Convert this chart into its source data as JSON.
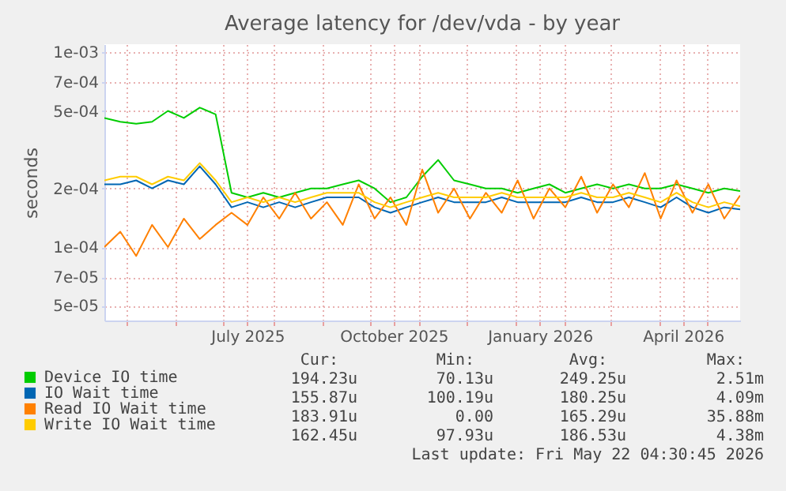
{
  "chart_data": {
    "type": "line",
    "title": "Average latency for /dev/vda - by year",
    "ylabel": "seconds",
    "log": "y",
    "grid": true,
    "legend": "bottom",
    "xlim": [
      "2025-04-17",
      "2026-05-22"
    ],
    "xticks": [
      {
        "value": "2025-05-01",
        "label": null
      },
      {
        "value": "2025-06-01",
        "label": null
      },
      {
        "value": "2025-07-01",
        "label": null
      },
      {
        "value": "2025-07-16",
        "label": "July 2025"
      },
      {
        "value": "2025-08-01",
        "label": null
      },
      {
        "value": "2025-09-01",
        "label": null
      },
      {
        "value": "2025-10-01",
        "label": null
      },
      {
        "value": "2025-10-16",
        "label": "October 2025"
      },
      {
        "value": "2025-11-01",
        "label": null
      },
      {
        "value": "2025-12-01",
        "label": null
      },
      {
        "value": "2026-01-01",
        "label": null
      },
      {
        "value": "2026-01-16",
        "label": "January 2026"
      },
      {
        "value": "2026-02-01",
        "label": null
      },
      {
        "value": "2026-03-01",
        "label": null
      },
      {
        "value": "2026-04-01",
        "label": null
      },
      {
        "value": "2026-04-16",
        "label": "April 2026"
      },
      {
        "value": "2026-05-01",
        "label": null
      }
    ],
    "ylim": [
      4.2e-05,
      0.0011
    ],
    "yticks": [
      {
        "value": 5e-05,
        "label": "5e-05"
      },
      {
        "value": 7e-05,
        "label": "7e-05"
      },
      {
        "value": 0.0001,
        "label": "1e-04"
      },
      {
        "value": 0.0002,
        "label": "2e-04"
      },
      {
        "value": 0.0005,
        "label": "5e-04"
      },
      {
        "value": 0.0007,
        "label": "7e-04"
      },
      {
        "value": 0.001,
        "label": "1e-03"
      }
    ],
    "x": [
      "2025-04-17",
      "2025-04-27",
      "2025-05-07",
      "2025-05-17",
      "2025-05-27",
      "2025-06-06",
      "2025-06-16",
      "2025-06-26",
      "2025-07-06",
      "2025-07-16",
      "2025-07-26",
      "2025-08-05",
      "2025-08-15",
      "2025-08-25",
      "2025-09-04",
      "2025-09-14",
      "2025-09-24",
      "2025-10-04",
      "2025-10-14",
      "2025-10-24",
      "2025-11-03",
      "2025-11-13",
      "2025-11-23",
      "2025-12-03",
      "2025-12-13",
      "2025-12-23",
      "2026-01-02",
      "2026-01-12",
      "2026-01-22",
      "2026-02-01",
      "2026-02-11",
      "2026-02-21",
      "2026-03-03",
      "2026-03-13",
      "2026-03-23",
      "2026-04-02",
      "2026-04-12",
      "2026-04-22",
      "2026-05-02",
      "2026-05-12",
      "2026-05-22"
    ],
    "series": [
      {
        "name": "Device IO time",
        "color": "#00cc00",
        "values": [
          0.00046,
          0.00044,
          0.00043,
          0.00044,
          0.0005,
          0.00046,
          0.00052,
          0.00048,
          0.00019,
          0.00018,
          0.00019,
          0.00018,
          0.00019,
          0.0002,
          0.0002,
          0.00021,
          0.00022,
          0.0002,
          0.00017,
          0.00018,
          0.00023,
          0.00028,
          0.00022,
          0.00021,
          0.0002,
          0.0002,
          0.00019,
          0.0002,
          0.00021,
          0.00019,
          0.0002,
          0.00021,
          0.0002,
          0.00021,
          0.0002,
          0.0002,
          0.00021,
          0.0002,
          0.00019,
          0.0002,
          0.000194
        ]
      },
      {
        "name": "IO Wait time",
        "color": "#0066b3",
        "values": [
          0.00021,
          0.00021,
          0.00022,
          0.0002,
          0.00022,
          0.00021,
          0.00026,
          0.00021,
          0.00016,
          0.00017,
          0.00016,
          0.00017,
          0.00016,
          0.00017,
          0.00018,
          0.00018,
          0.00018,
          0.00016,
          0.00015,
          0.00016,
          0.00017,
          0.00018,
          0.00017,
          0.00017,
          0.00017,
          0.00018,
          0.00017,
          0.00017,
          0.00017,
          0.00017,
          0.00018,
          0.00017,
          0.00017,
          0.00018,
          0.00017,
          0.00016,
          0.00018,
          0.00016,
          0.00015,
          0.00016,
          0.000156
        ]
      },
      {
        "name": "Read IO Wait time",
        "color": "#ff8000",
        "values": [
          0.0001,
          0.00012,
          9e-05,
          0.00013,
          0.0001,
          0.00014,
          0.00011,
          0.00013,
          0.00015,
          0.00013,
          0.00018,
          0.00014,
          0.00019,
          0.00014,
          0.00017,
          0.00013,
          0.00021,
          0.00014,
          0.00018,
          0.00013,
          0.00025,
          0.00015,
          0.0002,
          0.00014,
          0.00019,
          0.00015,
          0.00022,
          0.00014,
          0.0002,
          0.00016,
          0.00023,
          0.00015,
          0.00021,
          0.00016,
          0.00024,
          0.00014,
          0.00022,
          0.00015,
          0.00021,
          0.00014,
          0.000184
        ]
      },
      {
        "name": "Write IO Wait time",
        "color": "#ffcc00",
        "values": [
          0.00022,
          0.00023,
          0.00023,
          0.00021,
          0.00023,
          0.00022,
          0.00027,
          0.00022,
          0.00017,
          0.00018,
          0.00017,
          0.00018,
          0.00017,
          0.00018,
          0.00019,
          0.00019,
          0.00019,
          0.00017,
          0.00016,
          0.00017,
          0.00018,
          0.00019,
          0.00018,
          0.00018,
          0.00018,
          0.00019,
          0.00018,
          0.00018,
          0.00018,
          0.00018,
          0.00019,
          0.00018,
          0.00018,
          0.00019,
          0.00018,
          0.00017,
          0.00019,
          0.00017,
          0.00016,
          0.00017,
          0.000162
        ]
      }
    ],
    "annotations": [
      "Cur:",
      "Min:",
      "Avg:",
      "Max:",
      "194.23u",
      "70.13u",
      "249.25u",
      "2.51m",
      "155.87u",
      "100.19u",
      "180.25u",
      "4.09m",
      "183.91u",
      "0.00",
      "165.29u",
      "35.88m",
      "162.45u",
      "97.93u",
      "186.53u",
      "4.38m",
      "Last update: Fri May 22 04:30:45 2026"
    ]
  }
}
